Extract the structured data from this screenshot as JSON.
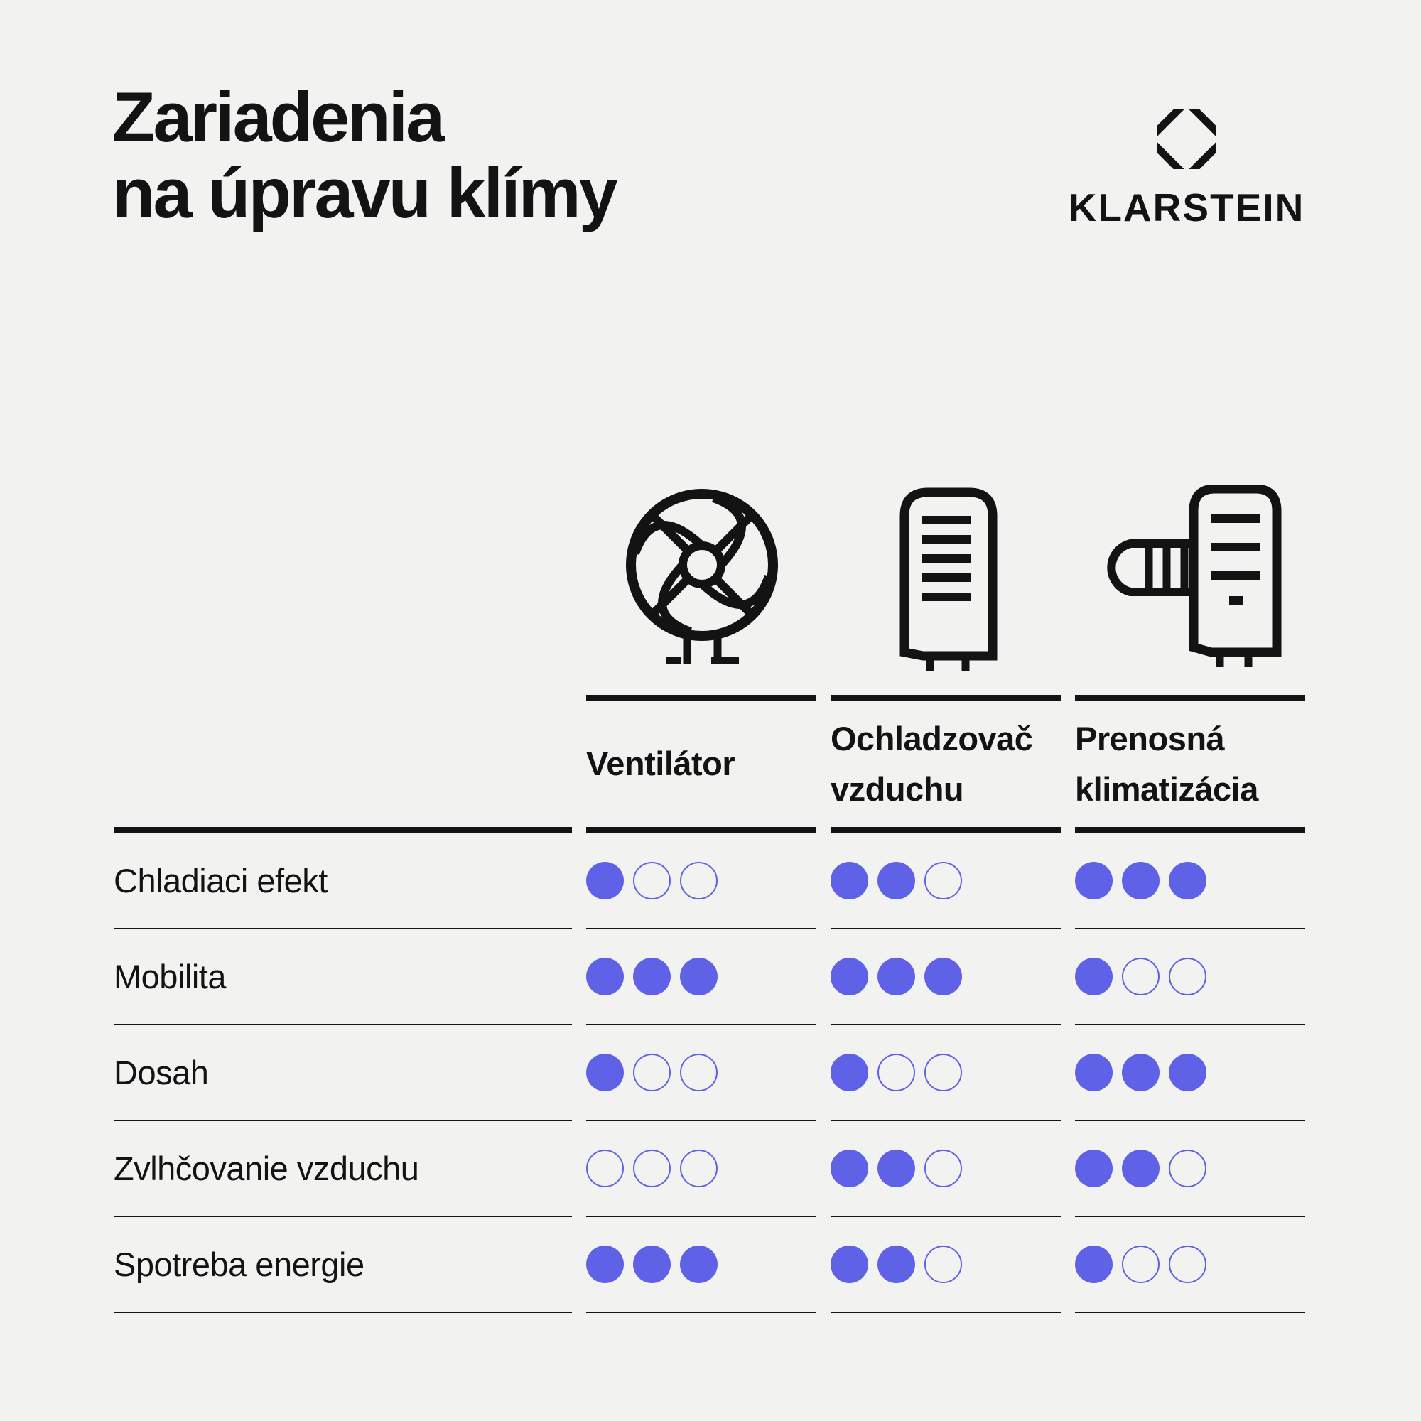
{
  "title": {
    "line1": "Zariadenia",
    "line2": "na úpravu klímy"
  },
  "brand": {
    "name": "KLARSTEIN"
  },
  "colors": {
    "background": "#f2f2f0",
    "ink": "#131313",
    "accent": "#5f62e6"
  },
  "table": {
    "max_rating": 3,
    "columns": [
      {
        "label": "Ventilátor",
        "icon": "fan-icon"
      },
      {
        "label": "Ochladzovač vzduchu",
        "icon": "air-cooler-icon"
      },
      {
        "label": "Prenosná klimatizácia",
        "icon": "portable-air-conditioner-icon"
      }
    ],
    "rows": [
      {
        "label": "Chladiaci efekt",
        "ratings": [
          1,
          2,
          3
        ]
      },
      {
        "label": "Mobilita",
        "ratings": [
          3,
          3,
          1
        ]
      },
      {
        "label": "Dosah",
        "ratings": [
          1,
          1,
          3
        ]
      },
      {
        "label": "Zvlhčovanie vzduchu",
        "ratings": [
          0,
          2,
          2
        ]
      },
      {
        "label": "Spotreba energie",
        "ratings": [
          3,
          2,
          1
        ]
      }
    ]
  },
  "chart_data": {
    "type": "table",
    "title": "Zariadenia na úpravu klímy",
    "columns": [
      "Ventilátor",
      "Ochladzovač vzduchu",
      "Prenosná klimatizácia"
    ],
    "rows": [
      "Chladiaci efekt",
      "Mobilita",
      "Dosah",
      "Zvlhčovanie vzduchu",
      "Spotreba energie"
    ],
    "values": [
      [
        1,
        2,
        3
      ],
      [
        3,
        3,
        1
      ],
      [
        1,
        1,
        3
      ],
      [
        0,
        2,
        2
      ],
      [
        3,
        2,
        1
      ]
    ],
    "scale": "ratings 0–3 shown as filled dots out of 3",
    "legend_position": "none",
    "grid": "row separators only"
  }
}
